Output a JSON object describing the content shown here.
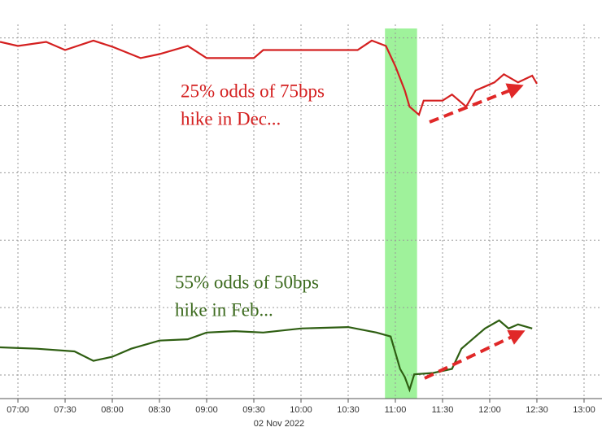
{
  "chart_data": {
    "type": "line",
    "xlim": [
      6.81,
      13.19
    ],
    "xticks": [
      {
        "value": 7,
        "label": "07:00"
      },
      {
        "value": 7.5,
        "label": "07:30"
      },
      {
        "value": 8,
        "label": "08:00"
      },
      {
        "value": 8.5,
        "label": "08:30"
      },
      {
        "value": 9,
        "label": "09:00"
      },
      {
        "value": 9.5,
        "label": "09:30"
      },
      {
        "value": 10,
        "label": "10:00"
      },
      {
        "value": 10.5,
        "label": "10:30"
      },
      {
        "value": 11,
        "label": "11:00"
      },
      {
        "value": 11.5,
        "label": "11:30"
      },
      {
        "value": 12,
        "label": "12:00"
      },
      {
        "value": 12.5,
        "label": "12:30"
      },
      {
        "value": 13,
        "label": "13:00"
      }
    ],
    "xlabel": "02 Nov 2022",
    "ylim": [
      0.65,
      6.2
    ],
    "yticks": [
      1,
      2,
      3,
      4,
      5,
      6
    ],
    "grid": true,
    "highlight": {
      "range": [
        10.89,
        11.23
      ],
      "color": "#8ef08a"
    },
    "series": [
      {
        "color": "#d42020",
        "x": [
          6.81,
          7.0,
          7.3,
          7.5,
          7.8,
          8.0,
          8.3,
          8.5,
          8.8,
          9.0,
          9.5,
          9.6,
          10.0,
          10.6,
          10.75,
          10.9,
          11.0,
          11.1,
          11.15,
          11.25,
          11.3,
          11.5,
          11.6,
          11.75,
          11.85,
          11.95,
          12.05,
          12.15,
          12.3,
          12.45,
          12.5
        ],
        "values": [
          5.94,
          5.88,
          5.94,
          5.82,
          5.96,
          5.87,
          5.7,
          5.76,
          5.88,
          5.7,
          5.7,
          5.82,
          5.82,
          5.82,
          5.96,
          5.88,
          5.58,
          5.22,
          4.98,
          4.86,
          5.07,
          5.07,
          5.16,
          4.98,
          5.22,
          5.28,
          5.34,
          5.46,
          5.34,
          5.44,
          5.32
        ]
      },
      {
        "color": "#2e5e12",
        "x": [
          6.81,
          7.2,
          7.6,
          7.8,
          8.0,
          8.2,
          8.5,
          8.8,
          9.0,
          9.3,
          9.6,
          10.0,
          10.5,
          10.8,
          10.95,
          11.0,
          11.05,
          11.1,
          11.15,
          11.2,
          11.4,
          11.6,
          11.7,
          11.85,
          11.95,
          12.1,
          12.2,
          12.3,
          12.45
        ],
        "values": [
          1.41,
          1.39,
          1.35,
          1.21,
          1.27,
          1.39,
          1.51,
          1.53,
          1.63,
          1.65,
          1.63,
          1.69,
          1.71,
          1.63,
          1.57,
          1.33,
          1.09,
          0.97,
          0.78,
          1.01,
          1.03,
          1.09,
          1.39,
          1.57,
          1.69,
          1.81,
          1.69,
          1.75,
          1.69
        ]
      }
    ],
    "annotations": [
      {
        "lines": [
          "25% odds of 75bps",
          "hike in Dec..."
        ],
        "color": "#d42020"
      },
      {
        "lines": [
          "55% odds of 50bps",
          "hike in Feb..."
        ],
        "color": "#3d6b1f"
      }
    ]
  }
}
